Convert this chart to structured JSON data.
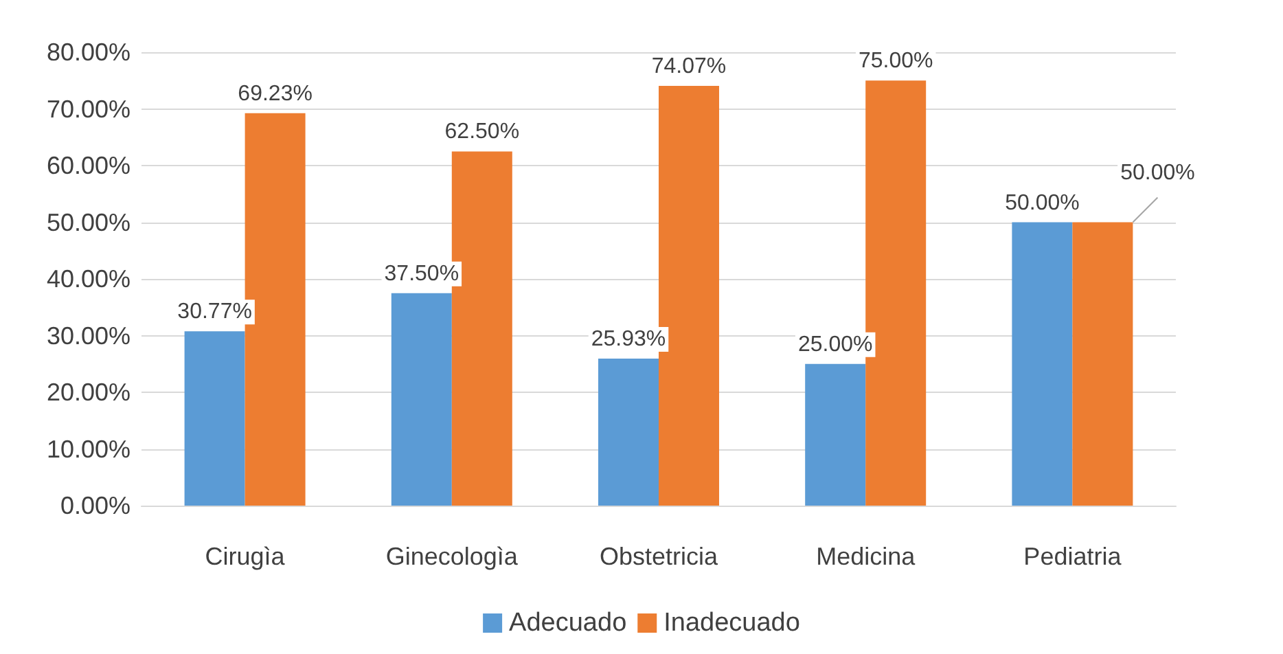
{
  "chart_data": {
    "type": "bar",
    "categories": [
      "Cirugìa",
      "Ginecologìa",
      "Obstetricia",
      "Medicina",
      "Pediatria"
    ],
    "series": [
      {
        "name": "Adecuado",
        "color": "#5b9bd5",
        "values": [
          30.77,
          37.5,
          25.93,
          25,
          50
        ],
        "value_labels": [
          "30.77%",
          "37.50%",
          "25.93%",
          "25.00%",
          "50.00%"
        ]
      },
      {
        "name": "Inadecuado",
        "color": "#ed7d31",
        "values": [
          69.23,
          62.5,
          74.07,
          75,
          50
        ],
        "value_labels": [
          "69.23%",
          "62.50%",
          "74.07%",
          "75.00%",
          "50.00%"
        ]
      }
    ],
    "ylim": [
      0,
      80
    ],
    "yticks": [
      {
        "value": 0,
        "label": "0.00%"
      },
      {
        "value": 10,
        "label": "10.00%"
      },
      {
        "value": 20,
        "label": "20.00%"
      },
      {
        "value": 30,
        "label": "30.00%"
      },
      {
        "value": 40,
        "label": "40.00%"
      },
      {
        "value": 50,
        "label": "50.00%"
      },
      {
        "value": 60,
        "label": "60.00%"
      },
      {
        "value": 70,
        "label": "70.00%"
      },
      {
        "value": 80,
        "label": "80.00%"
      }
    ],
    "grid": "y",
    "legend": "bottom"
  }
}
